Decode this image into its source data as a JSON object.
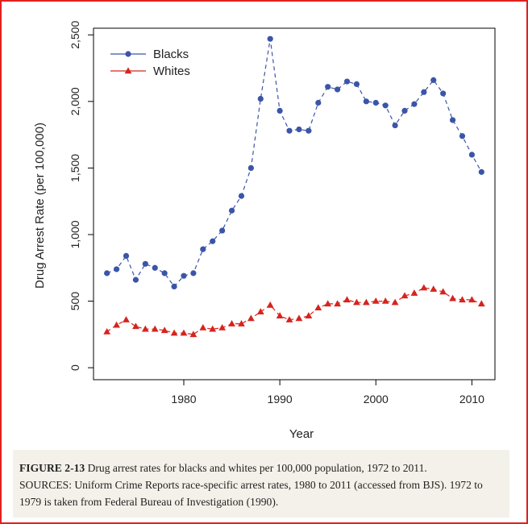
{
  "chart_data": {
    "type": "line",
    "x": [
      1972,
      1973,
      1974,
      1975,
      1976,
      1977,
      1978,
      1979,
      1980,
      1981,
      1982,
      1983,
      1984,
      1985,
      1986,
      1987,
      1988,
      1989,
      1990,
      1991,
      1992,
      1993,
      1994,
      1995,
      1996,
      1997,
      1998,
      1999,
      2000,
      2001,
      2002,
      2003,
      2004,
      2005,
      2006,
      2007,
      2008,
      2009,
      2010,
      2011
    ],
    "series": [
      {
        "name": "Blacks",
        "color": "#3a55a8",
        "marker": "circle",
        "values": [
          710,
          740,
          840,
          660,
          780,
          750,
          710,
          610,
          690,
          710,
          890,
          950,
          1030,
          1180,
          1290,
          1500,
          2020,
          2470,
          1930,
          1780,
          1790,
          1780,
          1990,
          2110,
          2090,
          2150,
          2130,
          2000,
          1990,
          1970,
          1820,
          1930,
          1980,
          2070,
          2160,
          2060,
          1860,
          1740,
          1600,
          1470
        ]
      },
      {
        "name": "Whites",
        "color": "#d6241e",
        "marker": "triangle",
        "values": [
          270,
          320,
          360,
          310,
          290,
          290,
          280,
          260,
          260,
          250,
          300,
          290,
          300,
          330,
          330,
          370,
          420,
          470,
          390,
          360,
          370,
          390,
          450,
          480,
          480,
          510,
          490,
          490,
          500,
          500,
          490,
          540,
          560,
          600,
          590,
          570,
          520,
          510,
          510,
          480
        ]
      }
    ],
    "xlabel": "Year",
    "ylabel": "Drug Arrest Rate (per 100,000)",
    "x_ticks": [
      1980,
      1990,
      2000,
      2010
    ],
    "x_tick_labels": [
      "1980",
      "1990",
      "2000",
      "2010"
    ],
    "y_ticks": [
      0,
      500,
      1000,
      1500,
      2000,
      2500
    ],
    "y_tick_labels": [
      "0",
      "500",
      "1,000",
      "1,500",
      "2,000",
      "2,500"
    ],
    "xlim": [
      1970.6,
      2012.4
    ],
    "ylim": [
      -90,
      2550
    ],
    "legend_position": "top-left"
  },
  "caption": {
    "figure_label": "FIGURE 2-13",
    "title_text": " Drug arrest rates for blacks and whites per 100,000 population, 1972 to 2011.",
    "sources_text": "SOURCES: Uniform Crime Reports race-specific arrest rates, 1980 to 2011 (accessed from BJS). 1972 to 1979 is taken from Federal Bureau of Investigation (1990)."
  }
}
